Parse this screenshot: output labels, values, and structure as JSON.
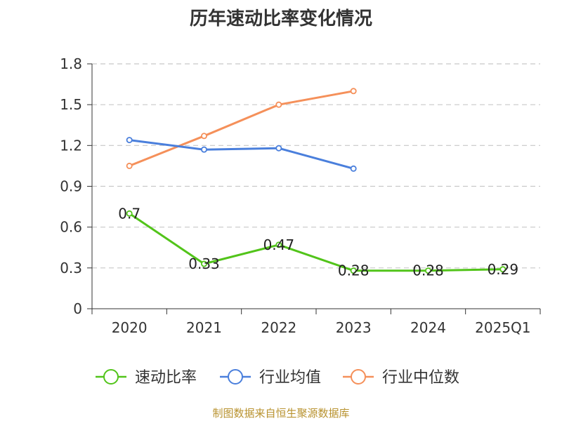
{
  "title": "历年速动比率变化情况",
  "source_note": "制图数据来自恒生聚源数据库",
  "chart_data": {
    "type": "line",
    "title": "历年速动比率变化情况",
    "categories": [
      "2020",
      "2021",
      "2022",
      "2023",
      "2024",
      "2025Q1"
    ],
    "ylim": [
      0,
      1.8
    ],
    "yticks": [
      0,
      0.3,
      0.6,
      0.9,
      1.2,
      1.5,
      1.8
    ],
    "ytick_labels": [
      "0",
      "0.3",
      "0.6",
      "0.9",
      "1.2",
      "1.5",
      "1.8"
    ],
    "grid": true,
    "legend_position": "bottom",
    "series": [
      {
        "name": "速动比率",
        "color": "#52c41a",
        "values": [
          0.7,
          0.33,
          0.47,
          0.28,
          0.28,
          0.29
        ],
        "labels": [
          "0.7",
          "0.33",
          "0.47",
          "0.28",
          "0.28",
          "0.29"
        ],
        "show_labels": true
      },
      {
        "name": "行业均值",
        "color": "#4a7fdc",
        "values": [
          1.24,
          1.17,
          1.18,
          1.03,
          null,
          null
        ],
        "show_labels": false
      },
      {
        "name": "行业中位数",
        "color": "#f5905a",
        "values": [
          1.05,
          1.27,
          1.5,
          1.6,
          null,
          null
        ],
        "show_labels": false
      }
    ]
  }
}
